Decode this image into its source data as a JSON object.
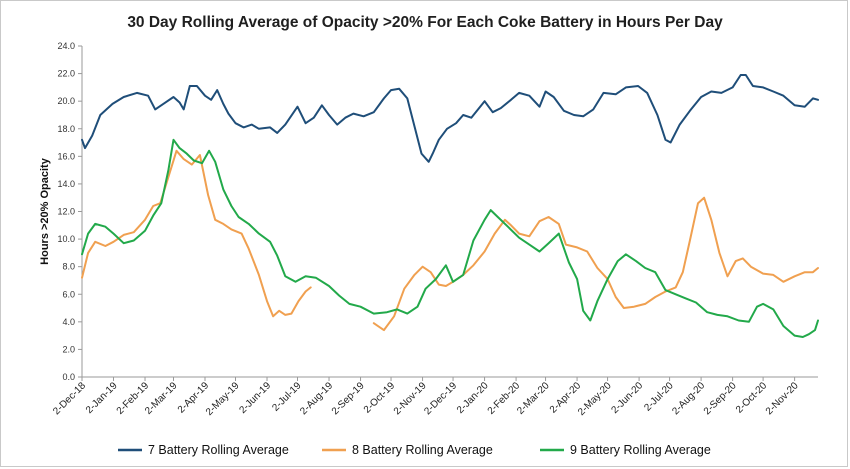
{
  "chart_data": {
    "type": "line",
    "title": "30 Day Rolling Average of Opacity >20% For Each Coke Battery in Hours Per Day",
    "xlabel": "",
    "ylabel": "Hours >20% Opacity",
    "ylim": [
      0,
      24
    ],
    "yticks": [
      "0.0",
      "2.0",
      "4.0",
      "6.0",
      "8.0",
      "10.0",
      "12.0",
      "14.0",
      "16.0",
      "18.0",
      "20.0",
      "22.0",
      "24.0"
    ],
    "x_range": [
      "2018-12-02",
      "2020-11-25"
    ],
    "categories": [
      "2-Dec-18",
      "2-Jan-19",
      "2-Feb-19",
      "2-Mar-19",
      "2-Apr-19",
      "2-May-19",
      "2-Jun-19",
      "2-Jul-19",
      "2-Aug-19",
      "2-Sep-19",
      "2-Oct-19",
      "2-Nov-19",
      "2-Dec-19",
      "2-Jan-20",
      "2-Feb-20",
      "2-Mar-20",
      "2-Apr-20",
      "2-May-20",
      "2-Jun-20",
      "2-Jul-20",
      "2-Aug-20",
      "2-Sep-20",
      "2-Oct-20",
      "2-Nov-20"
    ],
    "grid": false,
    "legend_position": "bottom",
    "series": [
      {
        "name": "7 Battery Rolling Average",
        "color": "#1f4e79",
        "points": [
          [
            "2018-12-02",
            17.2
          ],
          [
            "2018-12-05",
            16.6
          ],
          [
            "2018-12-12",
            17.5
          ],
          [
            "2018-12-20",
            19.0
          ],
          [
            "2019-01-01",
            19.8
          ],
          [
            "2019-01-12",
            20.3
          ],
          [
            "2019-01-25",
            20.6
          ],
          [
            "2019-02-05",
            20.4
          ],
          [
            "2019-02-12",
            19.4
          ],
          [
            "2019-02-20",
            19.8
          ],
          [
            "2019-03-02",
            20.3
          ],
          [
            "2019-03-08",
            19.9
          ],
          [
            "2019-03-12",
            19.4
          ],
          [
            "2019-03-18",
            21.1
          ],
          [
            "2019-03-25",
            21.1
          ],
          [
            "2019-04-02",
            20.4
          ],
          [
            "2019-04-08",
            20.1
          ],
          [
            "2019-04-14",
            20.8
          ],
          [
            "2019-04-20",
            19.8
          ],
          [
            "2019-04-25",
            19.1
          ],
          [
            "2019-05-02",
            18.4
          ],
          [
            "2019-05-10",
            18.1
          ],
          [
            "2019-05-18",
            18.3
          ],
          [
            "2019-05-25",
            18.0
          ],
          [
            "2019-06-05",
            18.1
          ],
          [
            "2019-06-12",
            17.7
          ],
          [
            "2019-06-20",
            18.3
          ],
          [
            "2019-07-02",
            19.6
          ],
          [
            "2019-07-10",
            18.4
          ],
          [
            "2019-07-18",
            18.8
          ],
          [
            "2019-07-26",
            19.7
          ],
          [
            "2019-08-02",
            19.0
          ],
          [
            "2019-08-10",
            18.3
          ],
          [
            "2019-08-18",
            18.8
          ],
          [
            "2019-08-26",
            19.1
          ],
          [
            "2019-09-05",
            18.9
          ],
          [
            "2019-09-15",
            19.2
          ],
          [
            "2019-09-25",
            20.2
          ],
          [
            "2019-10-02",
            20.8
          ],
          [
            "2019-10-10",
            20.9
          ],
          [
            "2019-10-18",
            20.2
          ],
          [
            "2019-10-25",
            18.2
          ],
          [
            "2019-11-01",
            16.2
          ],
          [
            "2019-11-08",
            15.6
          ],
          [
            "2019-11-12",
            16.2
          ],
          [
            "2019-11-18",
            17.2
          ],
          [
            "2019-11-26",
            18.0
          ],
          [
            "2019-12-05",
            18.4
          ],
          [
            "2019-12-12",
            19.0
          ],
          [
            "2019-12-20",
            18.8
          ],
          [
            "2020-01-02",
            20.0
          ],
          [
            "2020-01-10",
            19.2
          ],
          [
            "2020-01-18",
            19.5
          ],
          [
            "2020-01-28",
            20.1
          ],
          [
            "2020-02-05",
            20.6
          ],
          [
            "2020-02-15",
            20.4
          ],
          [
            "2020-02-25",
            19.6
          ],
          [
            "2020-03-02",
            20.7
          ],
          [
            "2020-03-10",
            20.3
          ],
          [
            "2020-03-20",
            19.3
          ],
          [
            "2020-03-30",
            19.0
          ],
          [
            "2020-04-08",
            18.9
          ],
          [
            "2020-04-18",
            19.4
          ],
          [
            "2020-04-28",
            20.6
          ],
          [
            "2020-05-10",
            20.5
          ],
          [
            "2020-05-20",
            21.0
          ],
          [
            "2020-06-01",
            21.1
          ],
          [
            "2020-06-10",
            20.6
          ],
          [
            "2020-06-20",
            19.0
          ],
          [
            "2020-06-28",
            17.2
          ],
          [
            "2020-07-03",
            17.0
          ],
          [
            "2020-07-12",
            18.3
          ],
          [
            "2020-07-22",
            19.3
          ],
          [
            "2020-08-02",
            20.3
          ],
          [
            "2020-08-12",
            20.7
          ],
          [
            "2020-08-22",
            20.6
          ],
          [
            "2020-09-02",
            21.0
          ],
          [
            "2020-09-10",
            21.9
          ],
          [
            "2020-09-15",
            21.9
          ],
          [
            "2020-09-22",
            21.1
          ],
          [
            "2020-10-02",
            21.0
          ],
          [
            "2020-10-12",
            20.7
          ],
          [
            "2020-10-22",
            20.4
          ],
          [
            "2020-11-02",
            19.7
          ],
          [
            "2020-11-12",
            19.6
          ],
          [
            "2020-11-20",
            20.2
          ],
          [
            "2020-11-25",
            20.1
          ]
        ]
      },
      {
        "name": "8 Battery Rolling Average",
        "color": "#f0a050",
        "points": [
          [
            "2018-12-02",
            7.2
          ],
          [
            "2018-12-08",
            9.0
          ],
          [
            "2018-12-15",
            9.8
          ],
          [
            "2018-12-25",
            9.5
          ],
          [
            "2019-01-02",
            9.8
          ],
          [
            "2019-01-12",
            10.3
          ],
          [
            "2019-01-22",
            10.5
          ],
          [
            "2019-02-02",
            11.4
          ],
          [
            "2019-02-10",
            12.4
          ],
          [
            "2019-02-17",
            12.6
          ],
          [
            "2019-02-25",
            14.5
          ],
          [
            "2019-03-05",
            16.4
          ],
          [
            "2019-03-12",
            15.8
          ],
          [
            "2019-03-20",
            15.4
          ],
          [
            "2019-03-28",
            16.1
          ],
          [
            "2019-04-05",
            13.2
          ],
          [
            "2019-04-12",
            11.4
          ],
          [
            "2019-04-20",
            11.1
          ],
          [
            "2019-04-28",
            10.7
          ],
          [
            "2019-05-08",
            10.4
          ],
          [
            "2019-05-15",
            9.3
          ],
          [
            "2019-05-25",
            7.4
          ],
          [
            "2019-06-02",
            5.5
          ],
          [
            "2019-06-08",
            4.4
          ],
          [
            "2019-06-14",
            4.8
          ],
          [
            "2019-06-20",
            4.5
          ],
          [
            "2019-06-26",
            4.6
          ],
          [
            "2019-07-03",
            5.5
          ],
          [
            "2019-07-10",
            6.2
          ],
          [
            "2019-07-15",
            6.5
          ]
        ]
      },
      {
        "name": "8 Battery Rolling Average",
        "color": "#f0a050",
        "points": [
          [
            "2019-09-15",
            3.9
          ],
          [
            "2019-09-25",
            3.4
          ],
          [
            "2019-10-05",
            4.4
          ],
          [
            "2019-10-15",
            6.4
          ],
          [
            "2019-10-25",
            7.4
          ],
          [
            "2019-11-02",
            8.0
          ],
          [
            "2019-11-10",
            7.6
          ],
          [
            "2019-11-18",
            6.7
          ],
          [
            "2019-11-25",
            6.6
          ],
          [
            "2019-12-02",
            6.9
          ],
          [
            "2019-12-12",
            7.4
          ],
          [
            "2019-12-22",
            8.1
          ],
          [
            "2020-01-02",
            9.1
          ],
          [
            "2020-01-12",
            10.4
          ],
          [
            "2020-01-22",
            11.4
          ],
          [
            "2020-01-28",
            11.0
          ],
          [
            "2020-02-05",
            10.4
          ],
          [
            "2020-02-15",
            10.2
          ],
          [
            "2020-02-25",
            11.3
          ],
          [
            "2020-03-05",
            11.6
          ],
          [
            "2020-03-15",
            11.1
          ],
          [
            "2020-03-22",
            9.6
          ],
          [
            "2020-04-02",
            9.4
          ],
          [
            "2020-04-12",
            9.1
          ],
          [
            "2020-04-22",
            7.9
          ],
          [
            "2020-05-02",
            7.1
          ],
          [
            "2020-05-10",
            5.8
          ],
          [
            "2020-05-18",
            5.0
          ],
          [
            "2020-05-28",
            5.1
          ],
          [
            "2020-06-08",
            5.3
          ],
          [
            "2020-06-18",
            5.8
          ],
          [
            "2020-06-28",
            6.2
          ],
          [
            "2020-07-08",
            6.5
          ],
          [
            "2020-07-15",
            7.6
          ],
          [
            "2020-07-22",
            9.9
          ],
          [
            "2020-07-30",
            12.6
          ],
          [
            "2020-08-05",
            13.0
          ],
          [
            "2020-08-12",
            11.4
          ],
          [
            "2020-08-20",
            9.0
          ],
          [
            "2020-08-28",
            7.3
          ],
          [
            "2020-09-05",
            8.4
          ],
          [
            "2020-09-12",
            8.6
          ],
          [
            "2020-09-20",
            8.0
          ],
          [
            "2020-10-02",
            7.5
          ],
          [
            "2020-10-12",
            7.4
          ],
          [
            "2020-10-22",
            6.9
          ],
          [
            "2020-11-02",
            7.3
          ],
          [
            "2020-11-12",
            7.6
          ],
          [
            "2020-11-20",
            7.6
          ],
          [
            "2020-11-25",
            7.9
          ]
        ]
      },
      {
        "name": "9 Battery  Rolling Average",
        "color": "#22a94a",
        "points": [
          [
            "2018-12-02",
            8.9
          ],
          [
            "2018-12-08",
            10.4
          ],
          [
            "2018-12-15",
            11.1
          ],
          [
            "2018-12-25",
            10.9
          ],
          [
            "2019-01-02",
            10.4
          ],
          [
            "2019-01-12",
            9.7
          ],
          [
            "2019-01-22",
            9.9
          ],
          [
            "2019-02-02",
            10.6
          ],
          [
            "2019-02-10",
            11.7
          ],
          [
            "2019-02-18",
            12.6
          ],
          [
            "2019-02-25",
            15.0
          ],
          [
            "2019-03-02",
            17.2
          ],
          [
            "2019-03-08",
            16.6
          ],
          [
            "2019-03-15",
            16.2
          ],
          [
            "2019-03-22",
            15.7
          ],
          [
            "2019-03-30",
            15.5
          ],
          [
            "2019-04-06",
            16.4
          ],
          [
            "2019-04-12",
            15.6
          ],
          [
            "2019-04-20",
            13.6
          ],
          [
            "2019-04-28",
            12.4
          ],
          [
            "2019-05-05",
            11.6
          ],
          [
            "2019-05-15",
            11.1
          ],
          [
            "2019-05-25",
            10.4
          ],
          [
            "2019-06-05",
            9.8
          ],
          [
            "2019-06-12",
            8.8
          ],
          [
            "2019-06-20",
            7.3
          ],
          [
            "2019-06-30",
            6.9
          ],
          [
            "2019-07-10",
            7.3
          ],
          [
            "2019-07-20",
            7.2
          ],
          [
            "2019-08-02",
            6.6
          ],
          [
            "2019-08-12",
            5.9
          ],
          [
            "2019-08-22",
            5.3
          ],
          [
            "2019-09-02",
            5.1
          ],
          [
            "2019-09-15",
            4.6
          ],
          [
            "2019-09-28",
            4.7
          ],
          [
            "2019-10-08",
            4.9
          ],
          [
            "2019-10-18",
            4.6
          ],
          [
            "2019-10-28",
            5.1
          ],
          [
            "2019-11-05",
            6.4
          ],
          [
            "2019-11-15",
            7.1
          ],
          [
            "2019-11-25",
            8.1
          ],
          [
            "2019-12-02",
            6.9
          ],
          [
            "2019-12-12",
            7.4
          ],
          [
            "2019-12-22",
            9.9
          ],
          [
            "2020-01-02",
            11.4
          ],
          [
            "2020-01-08",
            12.1
          ],
          [
            "2020-01-15",
            11.6
          ],
          [
            "2020-01-25",
            10.9
          ],
          [
            "2020-02-05",
            10.1
          ],
          [
            "2020-02-15",
            9.6
          ],
          [
            "2020-02-25",
            9.1
          ],
          [
            "2020-03-05",
            9.7
          ],
          [
            "2020-03-15",
            10.4
          ],
          [
            "2020-03-25",
            8.3
          ],
          [
            "2020-04-02",
            7.1
          ],
          [
            "2020-04-08",
            4.8
          ],
          [
            "2020-04-15",
            4.1
          ],
          [
            "2020-04-22",
            5.5
          ],
          [
            "2020-05-02",
            7.1
          ],
          [
            "2020-05-12",
            8.4
          ],
          [
            "2020-05-20",
            8.9
          ],
          [
            "2020-05-30",
            8.4
          ],
          [
            "2020-06-08",
            7.9
          ],
          [
            "2020-06-18",
            7.6
          ],
          [
            "2020-06-28",
            6.3
          ],
          [
            "2020-07-08",
            6.0
          ],
          [
            "2020-07-18",
            5.7
          ],
          [
            "2020-07-28",
            5.4
          ],
          [
            "2020-08-08",
            4.7
          ],
          [
            "2020-08-18",
            4.5
          ],
          [
            "2020-08-28",
            4.4
          ],
          [
            "2020-09-08",
            4.1
          ],
          [
            "2020-09-18",
            4.0
          ],
          [
            "2020-09-26",
            5.1
          ],
          [
            "2020-10-02",
            5.3
          ],
          [
            "2020-10-12",
            4.9
          ],
          [
            "2020-10-22",
            3.7
          ],
          [
            "2020-11-02",
            3.0
          ],
          [
            "2020-11-10",
            2.9
          ],
          [
            "2020-11-16",
            3.1
          ],
          [
            "2020-11-22",
            3.4
          ],
          [
            "2020-11-25",
            4.1
          ]
        ]
      }
    ],
    "legend": [
      {
        "name": "7 Battery Rolling Average",
        "color": "#1f4e79"
      },
      {
        "name": "8 Battery Rolling Average",
        "color": "#f0a050"
      },
      {
        "name": "9 Battery  Rolling Average",
        "color": "#22a94a"
      }
    ]
  }
}
